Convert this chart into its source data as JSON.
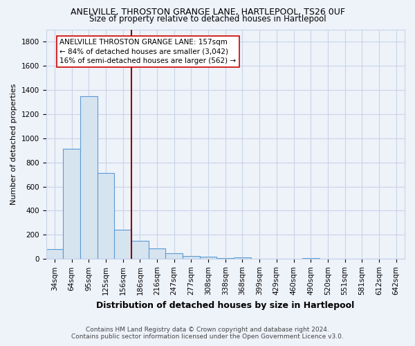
{
  "title": "ANELVILLE, THROSTON GRANGE LANE, HARTLEPOOL, TS26 0UF",
  "subtitle": "Size of property relative to detached houses in Hartlepool",
  "xlabel": "Distribution of detached houses by size in Hartlepool",
  "ylabel": "Number of detached properties",
  "footnote1": "Contains HM Land Registry data © Crown copyright and database right 2024.",
  "footnote2": "Contains public sector information licensed under the Open Government Licence v3.0.",
  "categories": [
    "34sqm",
    "64sqm",
    "95sqm",
    "125sqm",
    "156sqm",
    "186sqm",
    "216sqm",
    "247sqm",
    "277sqm",
    "308sqm",
    "338sqm",
    "368sqm",
    "399sqm",
    "429sqm",
    "460sqm",
    "490sqm",
    "520sqm",
    "551sqm",
    "581sqm",
    "612sqm",
    "642sqm"
  ],
  "values": [
    80,
    910,
    1350,
    710,
    245,
    148,
    85,
    50,
    25,
    20,
    10,
    15,
    0,
    0,
    0,
    10,
    0,
    0,
    0,
    0,
    0
  ],
  "bar_color": "#d6e4f0",
  "bar_edge_color": "#5b9bd5",
  "ylim": [
    0,
    1900
  ],
  "yticks": [
    0,
    200,
    400,
    600,
    800,
    1000,
    1200,
    1400,
    1600,
    1800
  ],
  "property_line_x": 4.5,
  "property_line_color": "#8b0000",
  "annotation_text": "ANELVILLE THROSTON GRANGE LANE: 157sqm\n← 84% of detached houses are smaller (3,042)\n16% of semi-detached houses are larger (562) →",
  "annotation_box_color": "#ffffff",
  "annotation_box_edge": "#cc0000",
  "grid_color": "#c8d4e8",
  "bg_color": "#eef2f9",
  "title_fontsize": 9,
  "subtitle_fontsize": 8.5,
  "annotation_fontsize": 7.5,
  "ylabel_fontsize": 8,
  "xlabel_fontsize": 9,
  "tick_fontsize": 7.5,
  "footnote_fontsize": 6.5
}
